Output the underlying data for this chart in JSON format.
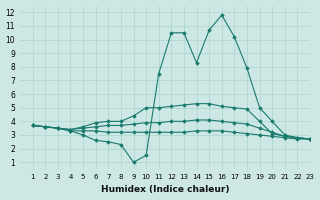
{
  "bg_color": "#cde8e4",
  "grid_color": "#b0d8d2",
  "line_color": "#1a7a6e",
  "marker_color": "#1a7a6e",
  "xlabel": "Humidex (Indice chaleur)",
  "xlim": [
    0,
    23
  ],
  "ylim": [
    0.5,
    12.5
  ],
  "xticks": [
    1,
    2,
    3,
    4,
    5,
    6,
    7,
    8,
    9,
    10,
    11,
    12,
    13,
    14,
    15,
    16,
    17,
    18,
    19,
    20,
    21,
    22,
    23
  ],
  "yticks": [
    1,
    2,
    3,
    4,
    5,
    6,
    7,
    8,
    9,
    10,
    11,
    12
  ],
  "lines": [
    {
      "x": [
        1,
        2,
        3,
        4,
        5,
        6,
        7,
        8,
        9,
        10,
        11,
        12,
        13,
        14,
        15,
        16,
        17,
        18,
        19,
        20,
        21,
        22,
        23
      ],
      "y": [
        3.7,
        3.6,
        3.5,
        3.3,
        3.0,
        2.6,
        2.5,
        2.3,
        1.0,
        1.5,
        7.5,
        10.5,
        10.5,
        8.3,
        10.7,
        11.8,
        10.2,
        7.9,
        5.0,
        4.0,
        3.0,
        2.8,
        2.7
      ]
    },
    {
      "x": [
        1,
        2,
        3,
        4,
        5,
        6,
        7,
        8,
        9,
        10,
        11,
        12,
        13,
        14,
        15,
        16,
        17,
        18,
        19,
        20,
        21,
        22,
        23
      ],
      "y": [
        3.7,
        3.6,
        3.5,
        3.4,
        3.6,
        3.9,
        4.0,
        4.0,
        4.4,
        5.0,
        5.0,
        5.1,
        5.2,
        5.3,
        5.3,
        5.1,
        5.0,
        4.9,
        4.0,
        3.1,
        2.9,
        2.8,
        2.7
      ]
    },
    {
      "x": [
        1,
        2,
        3,
        4,
        5,
        6,
        7,
        8,
        9,
        10,
        11,
        12,
        13,
        14,
        15,
        16,
        17,
        18,
        19,
        20,
        21,
        22,
        23
      ],
      "y": [
        3.7,
        3.6,
        3.5,
        3.4,
        3.5,
        3.6,
        3.7,
        3.7,
        3.8,
        3.9,
        3.9,
        4.0,
        4.0,
        4.1,
        4.1,
        4.0,
        3.9,
        3.8,
        3.5,
        3.2,
        2.9,
        2.8,
        2.7
      ]
    },
    {
      "x": [
        1,
        2,
        3,
        4,
        5,
        6,
        7,
        8,
        9,
        10,
        11,
        12,
        13,
        14,
        15,
        16,
        17,
        18,
        19,
        20,
        21,
        22,
        23
      ],
      "y": [
        3.7,
        3.6,
        3.5,
        3.3,
        3.3,
        3.3,
        3.2,
        3.2,
        3.2,
        3.2,
        3.2,
        3.2,
        3.2,
        3.3,
        3.3,
        3.3,
        3.2,
        3.1,
        3.0,
        2.9,
        2.8,
        2.7,
        2.7
      ]
    }
  ]
}
